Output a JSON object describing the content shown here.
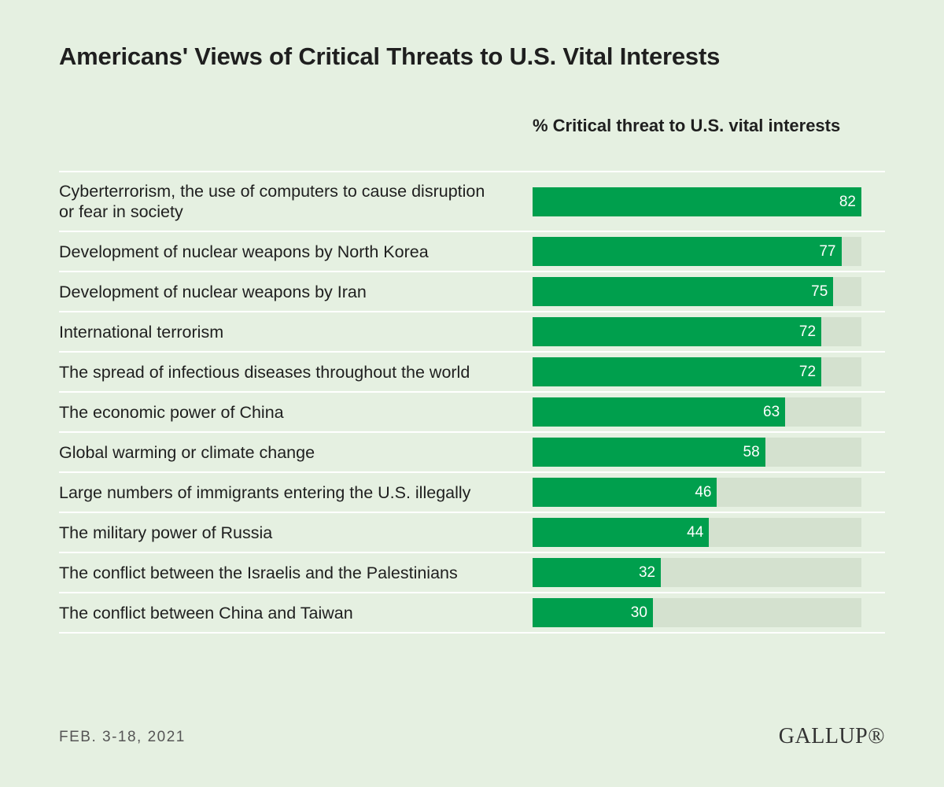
{
  "chart_data": {
    "type": "bar",
    "orientation": "horizontal",
    "title": "Americans' Views of Critical Threats to U.S. Vital Interests",
    "value_header": "% Critical threat to U.S. vital interests",
    "categories": [
      "Cyberterrorism, the use of computers to cause disruption or fear in society",
      "Development of nuclear weapons by North Korea",
      "Development of nuclear weapons by Iran",
      "International terrorism",
      "The spread of infectious diseases throughout the world",
      "The economic power of China",
      "Global warming or climate change",
      "Large numbers of immigrants entering the U.S. illegally",
      "The military power of Russia",
      "The conflict between the Israelis and the Palestinians",
      "The conflict between China and Taiwan"
    ],
    "values": [
      82,
      77,
      75,
      72,
      72,
      63,
      58,
      46,
      44,
      32,
      30
    ],
    "xlim": [
      0,
      82
    ],
    "color": "#009f4d",
    "track_color": "#d4e1cf",
    "date": "FEB. 3-18, 2021",
    "source": "GALLUP®"
  }
}
